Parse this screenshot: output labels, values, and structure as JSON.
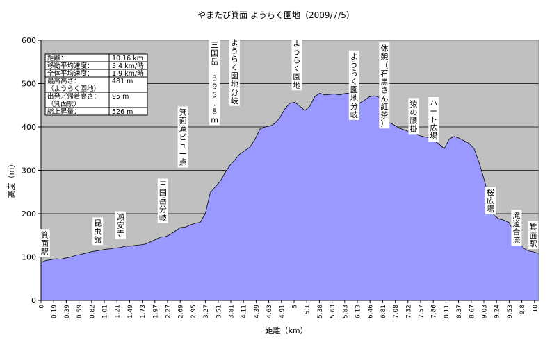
{
  "chart_data": {
    "type": "area",
    "title": "やまたび箕面 ようらく園地（2009/7/5）",
    "xlabel": "距離（km）",
    "ylabel": "高度（m）",
    "ylim": [
      0,
      600
    ],
    "yticks": [
      "0",
      "100",
      "200",
      "300",
      "400",
      "500",
      "600"
    ],
    "grid": true,
    "colors": {
      "fill": "#9999ff",
      "line": "#000000",
      "plot_bg": "#c0c0c0"
    },
    "xtick_labels": [
      "0",
      "0.19",
      "0.39",
      "0.59",
      "0.82",
      "1.01",
      "1.21",
      "1.49",
      "1.73",
      "1.97",
      "2.27",
      "2.69",
      "2.95",
      "3.27",
      "3.51",
      "3.81",
      "4.11",
      "4.39",
      "4.63",
      "4.91",
      "5",
      "5.1",
      "5.38",
      "5.63",
      "5.83",
      "6.13",
      "6.46",
      "6.81",
      "7.08",
      "7.32",
      "7.57",
      "7.86",
      "8.11",
      "8.37",
      "8.67",
      "9.03",
      "9.24",
      "9.53",
      "9.8",
      "10"
    ],
    "elevation": [
      88,
      92,
      94,
      96,
      95,
      98,
      100,
      104,
      106,
      109,
      112,
      114,
      116,
      118,
      119,
      121,
      122,
      125,
      125,
      127,
      128,
      130,
      135,
      140,
      146,
      147,
      152,
      160,
      168,
      169,
      174,
      178,
      180,
      200,
      248,
      262,
      275,
      295,
      312,
      325,
      338,
      346,
      354,
      372,
      395,
      400,
      402,
      408,
      422,
      442,
      455,
      457,
      448,
      438,
      448,
      470,
      478,
      474,
      475,
      476,
      474,
      477,
      478,
      470,
      455,
      462,
      470,
      472,
      468,
      440,
      410,
      404,
      397,
      393,
      389,
      387,
      380,
      377,
      375,
      368,
      360,
      350,
      372,
      378,
      374,
      368,
      362,
      350,
      318,
      280,
      238,
      196,
      188,
      185,
      180,
      158,
      135,
      120,
      114,
      112,
      108
    ],
    "annotations": [
      {
        "text": "箕面駅",
        "km": 0.08,
        "elev": 94
      },
      {
        "text": "昆虫館",
        "km": 1.22,
        "elev": 121
      },
      {
        "text": "瀬安寺",
        "km": 1.71,
        "elev": 135
      },
      {
        "text": "三国岳分岐",
        "km": 2.62,
        "elev": 172
      },
      {
        "text": "箕面滝ビュー点",
        "km": 3.05,
        "elev": 300
      },
      {
        "text": "三国岳　395.8m",
        "km": 3.73,
        "elev": 398
      },
      {
        "text": "ようらく園地分岐",
        "km": 4.16,
        "elev": 442
      },
      {
        "text": "ようらく園地",
        "km": 5.5,
        "elev": 478
      },
      {
        "text": "ようらく園地分岐",
        "km": 6.73,
        "elev": 410
      },
      {
        "text": "休憩（石黒さん紅茶）",
        "km": 7.38,
        "elev": 390
      },
      {
        "text": "猿の腰掛",
        "km": 8.01,
        "elev": 377
      },
      {
        "text": "ハート広場",
        "km": 8.44,
        "elev": 360
      },
      {
        "text": "桜広場",
        "km": 9.66,
        "elev": 192
      },
      {
        "text": "滝道合流",
        "km": 10.22,
        "elev": 120
      },
      {
        "text": "箕面駅",
        "km": 10.58,
        "elev": 112
      }
    ],
    "stats": [
      {
        "label": "距離：",
        "value": "10.16 km"
      },
      {
        "label": "移動平均速度：",
        "value": "3.4 km/時"
      },
      {
        "label": "全体平均速度：",
        "value": "1.9 km/時"
      },
      {
        "label": "最高高さ：\n（ようらく園地）",
        "value": "481 m"
      },
      {
        "label": "出発／帰着高さ：\n（箕面駅）",
        "value": "95 m"
      },
      {
        "label": "総上昇量：",
        "value": "526 m"
      }
    ]
  }
}
